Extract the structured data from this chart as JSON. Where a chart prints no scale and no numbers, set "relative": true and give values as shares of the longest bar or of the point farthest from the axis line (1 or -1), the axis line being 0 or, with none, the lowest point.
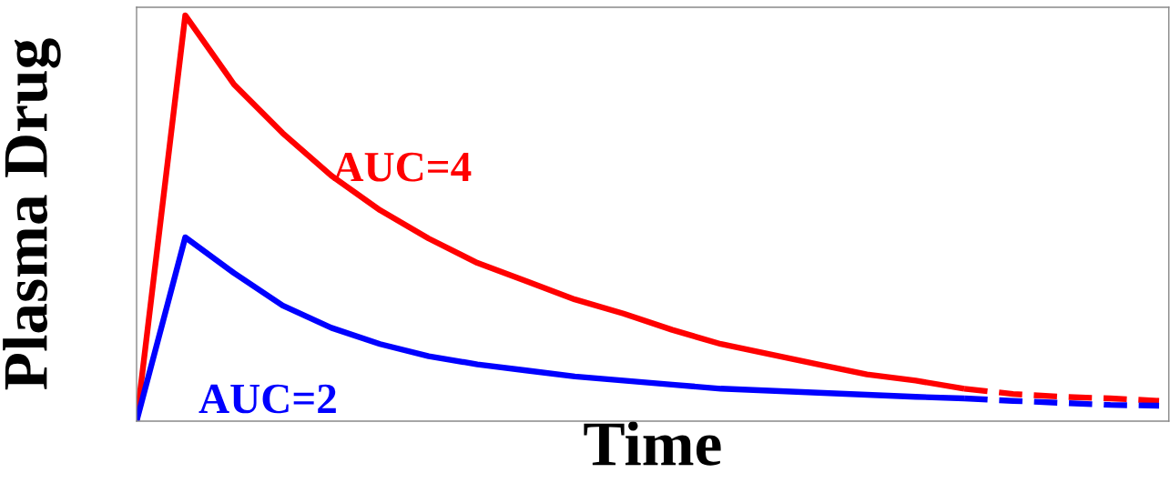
{
  "chart_data": {
    "type": "line",
    "relative": true,
    "xlabel": "Time",
    "ylabel": "Plasma Drug",
    "categories": [
      null,
      null,
      null,
      null,
      null,
      null,
      null,
      null,
      null,
      null,
      null,
      null,
      null,
      null,
      null,
      null,
      null,
      null,
      null,
      null,
      null,
      null
    ],
    "series": [
      {
        "color": "#ff0000",
        "line_style": "solid",
        "values": [
          0,
          1.0,
          0.83,
          0.71,
          0.605,
          0.52,
          0.45,
          0.39,
          0.345,
          0.3,
          0.265,
          0.225,
          0.19,
          0.165,
          0.14,
          0.115,
          0.1,
          0.08,
          null,
          null,
          null,
          null
        ]
      },
      {
        "color": "#0000ff",
        "line_style": "solid",
        "values": [
          0,
          0.453,
          0.365,
          0.285,
          0.23,
          0.19,
          0.16,
          0.14,
          0.125,
          0.11,
          0.1,
          0.09,
          0.08,
          0.075,
          0.07,
          0.065,
          0.06,
          0.056,
          null,
          null,
          null,
          null
        ]
      },
      {
        "color": "#ff0000",
        "line_style": "dashed",
        "values": [
          null,
          null,
          null,
          null,
          null,
          null,
          null,
          null,
          null,
          null,
          null,
          null,
          null,
          null,
          null,
          null,
          null,
          0.08,
          0.067,
          0.06,
          0.056,
          0.05
        ]
      },
      {
        "color": "#0000ff",
        "line_style": "dashed",
        "values": [
          null,
          null,
          null,
          null,
          null,
          null,
          null,
          null,
          null,
          null,
          null,
          null,
          null,
          null,
          null,
          null,
          null,
          0.056,
          0.05,
          0.045,
          0.04,
          0.038
        ]
      }
    ],
    "annotations": [
      "AUC=4",
      "AUC=2"
    ]
  }
}
